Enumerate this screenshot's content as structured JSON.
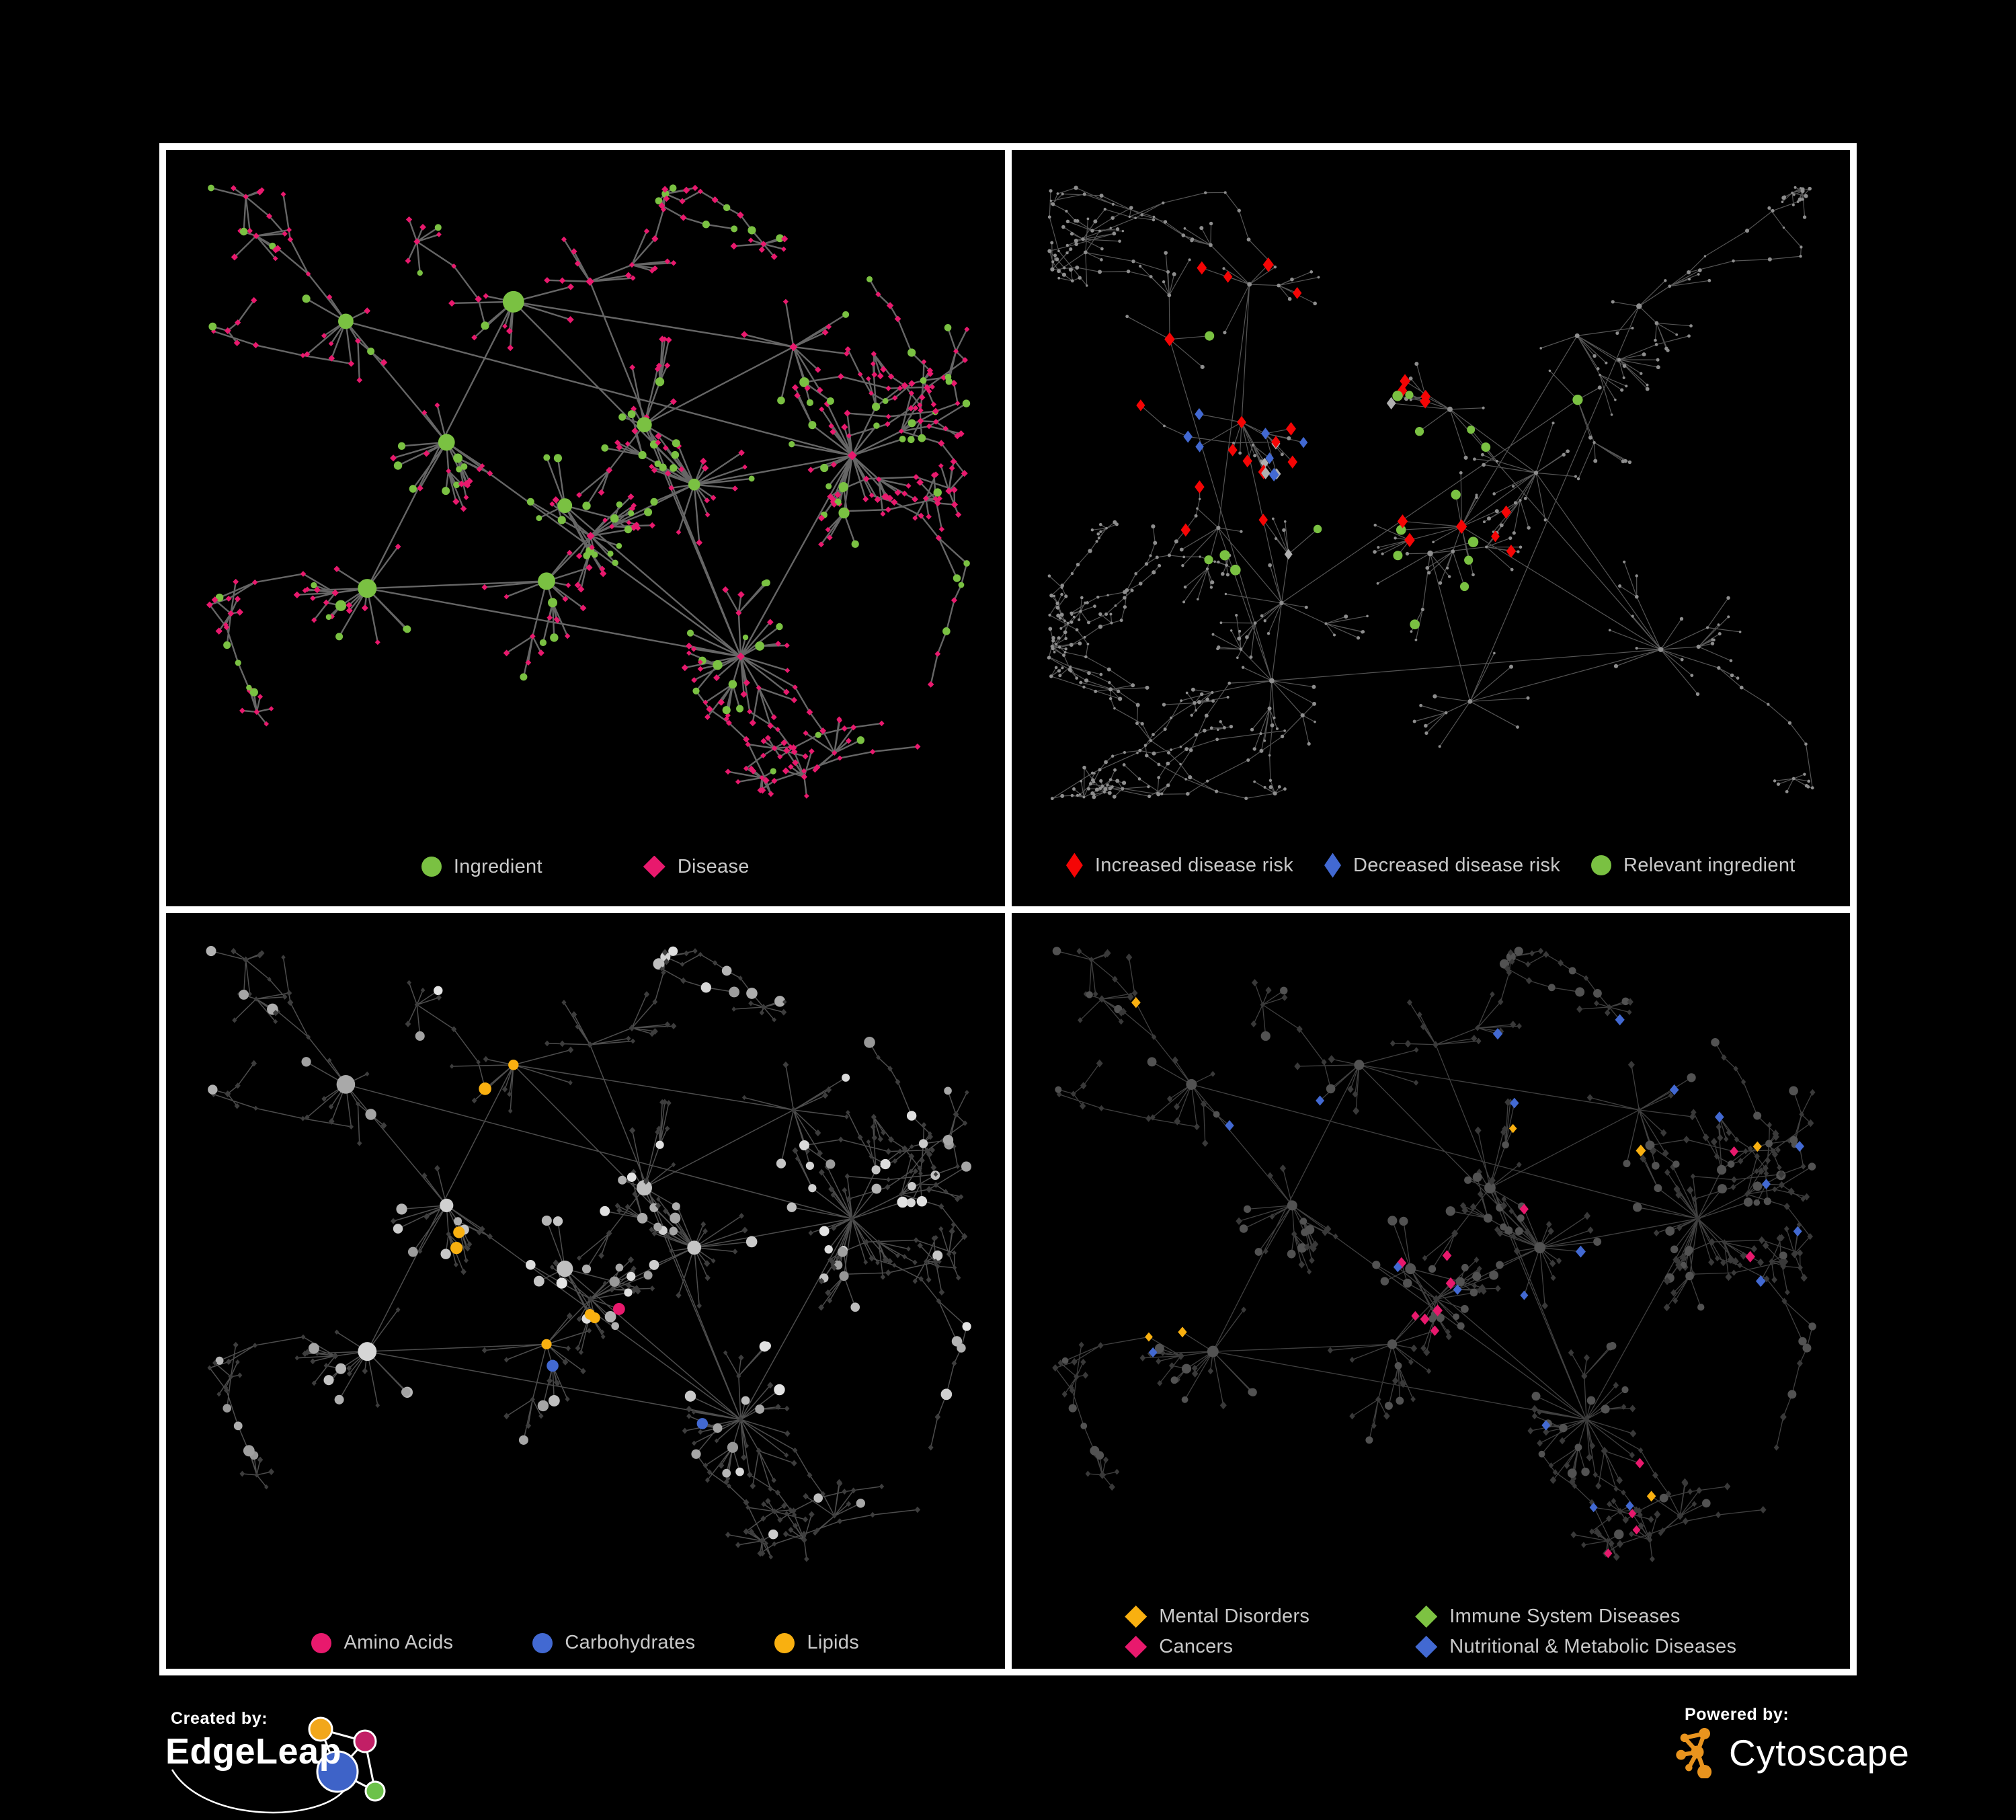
{
  "canvas": {
    "background": "#000000",
    "frame_color": "#FFFFFF"
  },
  "panels": [
    {
      "name": "ingredient-disease-network",
      "legend": [
        {
          "shape": "circle",
          "color": "#7AC142",
          "label": "Ingredient"
        },
        {
          "shape": "diamond",
          "color": "#E8196D",
          "label": "Disease"
        }
      ],
      "style": {
        "edge_color": "#6C6C6C",
        "edge_width": 2.4,
        "edge_opacity": 0.95,
        "ingredient_color": "#7AC142",
        "disease_color": "#E8196D"
      }
    },
    {
      "name": "disease-risk-network",
      "legend": [
        {
          "shape": "diamond-tall",
          "color": "#F50505",
          "label": "Increased disease risk"
        },
        {
          "shape": "diamond-tall",
          "color": "#4269D2",
          "label": "Decreased disease risk"
        },
        {
          "shape": "circle",
          "color": "#7AC142",
          "label": "Relevant ingredient"
        }
      ],
      "style": {
        "edge_color": "#5A5A5A",
        "edge_width": 1.2,
        "edge_opacity": 0.95,
        "node_color": "#8E8E8E",
        "increased_color": "#F50505",
        "decreased_color": "#4269D2",
        "neutral_color": "#B0B0B0",
        "ingredient_color": "#7AC142"
      }
    },
    {
      "name": "ingredient-categories-network",
      "legend": [
        {
          "shape": "circle",
          "color": "#E8196D",
          "label": "Amino Acids"
        },
        {
          "shape": "circle",
          "color": "#4269D2",
          "label": "Carbohydrates"
        },
        {
          "shape": "circle",
          "color": "#F9B010",
          "label": "Lipids"
        }
      ],
      "style": {
        "edge_color": "#9A9A9A",
        "edge_width": 1.5,
        "edge_opacity": 0.5,
        "ingredient_color": "#B4B4B4",
        "disease_color": "#3D3D3D",
        "amino_color": "#E8196D",
        "carb_color": "#4269D2",
        "lipid_color": "#F9B010"
      }
    },
    {
      "name": "disease-categories-network",
      "legend": [
        {
          "shape": "diamond",
          "color": "#F9B010",
          "label": "Mental Disorders"
        },
        {
          "shape": "diamond",
          "color": "#7DC242",
          "label": "Immune System Diseases"
        },
        {
          "shape": "diamond",
          "color": "#E8196D",
          "label": "Cancers"
        },
        {
          "shape": "diamond",
          "color": "#4269D2",
          "label": "Nutritional & Metabolic Diseases"
        }
      ],
      "style": {
        "edge_color": "#8F8F8F",
        "edge_width": 1.3,
        "edge_opacity": 0.45,
        "ingredient_color": "#525252",
        "disease_color": "#393939",
        "mental_color": "#F9B010",
        "immune_color": "#7DC242",
        "cancer_color": "#E8196D",
        "nutritional_color": "#4269D2"
      }
    }
  ],
  "footer": {
    "created_by_label": "Created by:",
    "edgeleap_brand": "EdgeLeap",
    "edgeleap_logo_colors": {
      "orange": "#F2A71B",
      "magenta": "#C21F66",
      "blue": "#3E63C8",
      "green": "#6CC24A",
      "line": "#FFFFFF"
    },
    "powered_by_label": "Powered by:",
    "cytoscape_brand": "Cytoscape",
    "cytoscape_logo_color": "#E9941E"
  }
}
